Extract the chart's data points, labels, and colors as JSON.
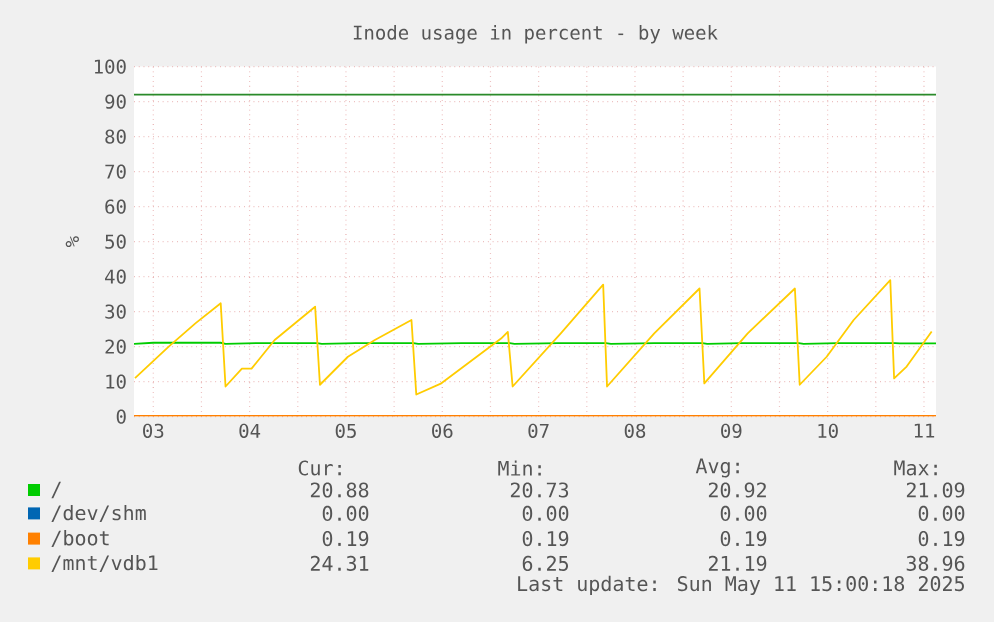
{
  "chart_data": {
    "type": "line",
    "title": "Inode usage in percent - by week",
    "ylabel": "%",
    "xlim": [
      3.3,
      11.625
    ],
    "ylim": [
      0,
      100
    ],
    "xticks": [
      {
        "value": 3.5,
        "label": "03"
      },
      {
        "value": 4,
        "label": null
      },
      {
        "value": 4.5,
        "label": "04"
      },
      {
        "value": 5,
        "label": null
      },
      {
        "value": 5.5,
        "label": "05"
      },
      {
        "value": 6,
        "label": null
      },
      {
        "value": 6.5,
        "label": "06"
      },
      {
        "value": 7,
        "label": null
      },
      {
        "value": 7.5,
        "label": "07"
      },
      {
        "value": 8,
        "label": null
      },
      {
        "value": 8.5,
        "label": "08"
      },
      {
        "value": 9,
        "label": null
      },
      {
        "value": 9.5,
        "label": "09"
      },
      {
        "value": 10,
        "label": null
      },
      {
        "value": 10.5,
        "label": "10"
      },
      {
        "value": 11,
        "label": null
      },
      {
        "value": 11.5,
        "label": "11"
      }
    ],
    "yticks": [
      0,
      10,
      20,
      30,
      40,
      50,
      60,
      70,
      80,
      90,
      100
    ],
    "grid": true,
    "legend": "bottom",
    "marker": "none",
    "series": [
      {
        "name": "/",
        "color": "#00cc00",
        "x": [
          3.3,
          3.5,
          4.2,
          4.25,
          4.6,
          5.2,
          5.25,
          5.6,
          6.2,
          6.25,
          6.7,
          7.2,
          7.25,
          7.7,
          8.2,
          8.25,
          8.7,
          9.2,
          9.25,
          9.6,
          10.2,
          10.25,
          10.6,
          11.2,
          11.25,
          11.625
        ],
        "values": [
          20.8,
          21.1,
          21.1,
          20.8,
          21.0,
          21.0,
          20.8,
          21.0,
          21.0,
          20.8,
          21.0,
          21.0,
          20.8,
          21.0,
          21.0,
          20.8,
          21.0,
          21.0,
          20.8,
          21.0,
          21.0,
          20.8,
          21.0,
          21.0,
          20.9,
          20.9
        ]
      },
      {
        "name": "/dev/shm",
        "color": "#0066b3",
        "values": [
          null,
          null
        ]
      },
      {
        "name": "/boot",
        "color": "#ff8000",
        "x": [
          3.3,
          11.625
        ],
        "values": [
          0.2,
          0.2
        ]
      },
      {
        "name": "/mnt/vdb1",
        "color": "#ffcc00",
        "x": [
          3.31,
          3.66,
          3.94,
          4.2,
          4.25,
          4.42,
          4.52,
          4.76,
          5.18,
          5.23,
          5.52,
          5.8,
          6.18,
          6.23,
          6.49,
          7.11,
          7.18,
          7.23,
          7.73,
          8.17,
          8.21,
          8.7,
          9.17,
          9.22,
          9.67,
          10.16,
          10.21,
          10.49,
          10.77,
          11.15,
          11.19,
          11.32,
          11.58
        ],
        "values": [
          11.0,
          20.0,
          26.7,
          32.4,
          8.6,
          13.7,
          13.7,
          21.9,
          31.4,
          9.1,
          17.1,
          21.9,
          27.6,
          6.3,
          9.5,
          22.3,
          24.2,
          8.6,
          23.8,
          37.7,
          8.6,
          23.8,
          36.6,
          9.5,
          23.8,
          36.6,
          9.1,
          17.1,
          27.6,
          39.0,
          10.9,
          14.3,
          24.3
        ]
      }
    ],
    "ref_lines": [
      {
        "axis": "y",
        "value": 92,
        "color": "#2a8a2a"
      }
    ],
    "annotations": [
      "Cur:",
      "Min:",
      "Avg:",
      "Max:",
      "20.88",
      "20.73",
      "20.92",
      "21.09",
      "0.00",
      "0.00",
      "0.00",
      "0.00",
      "0.19",
      "0.19",
      "0.19",
      "0.19",
      "24.31",
      "6.25",
      "21.19",
      "38.96",
      "Last update: Sun May 11 15:00:18 2025"
    ]
  }
}
